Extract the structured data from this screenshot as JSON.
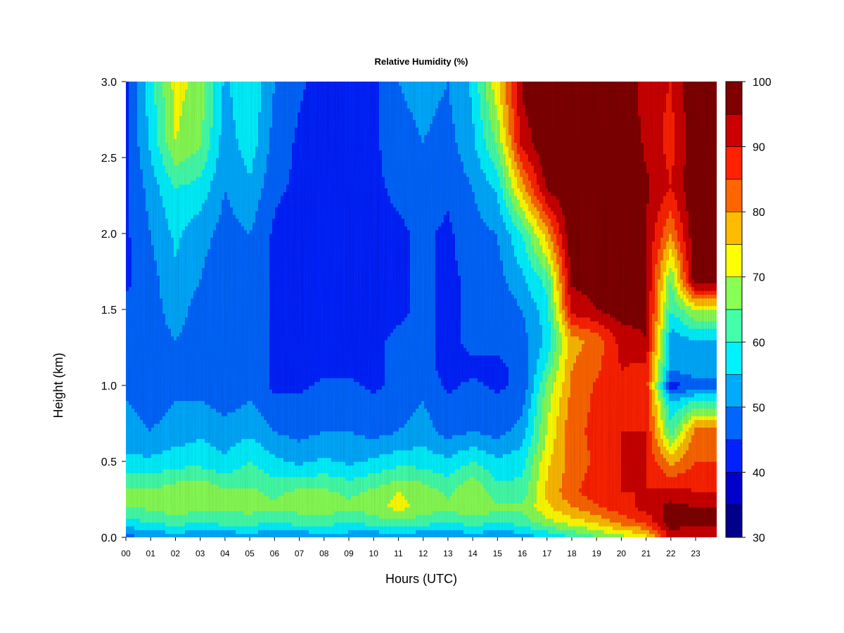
{
  "chart_data": {
    "type": "heatmap",
    "title": "Relative Humidity (%)",
    "xlabel": "Hours (UTC)",
    "ylabel": "Height (km)",
    "x_ticks": [
      "00",
      "01",
      "02",
      "03",
      "04",
      "05",
      "06",
      "07",
      "08",
      "09",
      "10",
      "11",
      "12",
      "13",
      "14",
      "15",
      "16",
      "17",
      "18",
      "19",
      "20",
      "21",
      "22",
      "23"
    ],
    "y_ticks": [
      "0.0",
      "0.5",
      "1.0",
      "1.5",
      "2.0",
      "2.5",
      "3.0"
    ],
    "xlim": [
      0,
      23.85
    ],
    "ylim": [
      0,
      3.0
    ],
    "colorbar": {
      "levels": [
        30,
        35,
        40,
        45,
        50,
        55,
        60,
        65,
        70,
        75,
        80,
        85,
        90,
        95,
        100
      ],
      "tick_labels": [
        "30",
        "40",
        "50",
        "60",
        "70",
        "80",
        "90",
        "100"
      ],
      "colors": [
        "#00008B",
        "#0000CD",
        "#0022FF",
        "#0066FF",
        "#00AAFF",
        "#00F2FF",
        "#44FFAA",
        "#88FF55",
        "#FFFF00",
        "#FFBB00",
        "#FF6600",
        "#FF2200",
        "#CC0000",
        "#800000"
      ]
    },
    "heights_km": [
      0.0,
      0.1,
      0.2,
      0.3,
      0.5,
      0.7,
      0.9,
      1.0,
      1.1,
      1.3,
      1.5,
      1.7,
      2.0,
      2.3,
      2.6,
      3.0
    ],
    "hours": [
      0,
      1,
      2,
      3,
      4,
      5,
      6,
      7,
      8,
      9,
      10,
      11,
      12,
      13,
      14,
      15,
      16,
      17,
      18,
      19,
      20,
      21,
      22,
      23
    ],
    "rh_grid_by_height": [
      [
        48,
        50,
        52,
        50,
        50,
        52,
        50,
        50,
        52,
        52,
        50,
        52,
        50,
        50,
        52,
        50,
        52,
        55,
        60,
        64,
        68,
        72,
        92,
        90
      ],
      [
        58,
        60,
        62,
        60,
        62,
        62,
        60,
        62,
        62,
        60,
        62,
        64,
        62,
        60,
        62,
        60,
        62,
        68,
        72,
        76,
        82,
        86,
        98,
        96
      ],
      [
        65,
        66,
        68,
        67,
        66,
        67,
        66,
        67,
        68,
        66,
        68,
        72,
        68,
        66,
        70,
        66,
        66,
        74,
        80,
        84,
        88,
        92,
        97,
        95
      ],
      [
        66,
        66,
        68,
        70,
        66,
        66,
        64,
        66,
        66,
        64,
        66,
        70,
        68,
        64,
        70,
        62,
        62,
        76,
        84,
        88,
        90,
        90,
        92,
        90
      ],
      [
        56,
        56,
        58,
        58,
        56,
        60,
        56,
        54,
        56,
        54,
        56,
        58,
        58,
        56,
        60,
        56,
        58,
        74,
        82,
        86,
        90,
        90,
        78,
        85
      ],
      [
        52,
        50,
        52,
        54,
        52,
        54,
        50,
        48,
        50,
        50,
        48,
        50,
        52,
        48,
        50,
        48,
        52,
        70,
        84,
        86,
        90,
        90,
        62,
        82
      ],
      [
        50,
        48,
        50,
        50,
        48,
        50,
        46,
        46,
        48,
        48,
        46,
        48,
        50,
        46,
        48,
        46,
        48,
        68,
        82,
        86,
        90,
        88,
        55,
        60
      ],
      [
        48,
        46,
        48,
        48,
        46,
        48,
        44,
        44,
        46,
        46,
        44,
        46,
        48,
        44,
        46,
        44,
        46,
        66,
        80,
        86,
        90,
        88,
        42,
        48
      ],
      [
        48,
        46,
        48,
        48,
        46,
        48,
        44,
        44,
        44,
        44,
        44,
        46,
        46,
        44,
        44,
        44,
        46,
        62,
        80,
        84,
        90,
        88,
        50,
        52
      ],
      [
        46,
        48,
        50,
        48,
        46,
        48,
        44,
        44,
        44,
        44,
        44,
        46,
        46,
        44,
        46,
        46,
        48,
        56,
        78,
        82,
        92,
        95,
        52,
        55
      ],
      [
        46,
        48,
        52,
        48,
        46,
        48,
        44,
        42,
        42,
        42,
        42,
        44,
        46,
        44,
        46,
        46,
        50,
        58,
        92,
        95,
        98,
        96,
        60,
        70
      ],
      [
        44,
        48,
        54,
        50,
        46,
        48,
        44,
        42,
        42,
        42,
        42,
        44,
        46,
        44,
        46,
        48,
        54,
        62,
        96,
        97,
        100,
        96,
        65,
        100
      ],
      [
        44,
        50,
        56,
        52,
        48,
        50,
        44,
        42,
        42,
        42,
        44,
        44,
        46,
        44,
        48,
        50,
        60,
        78,
        100,
        100,
        100,
        95,
        80,
        100
      ],
      [
        44,
        52,
        60,
        58,
        50,
        54,
        46,
        44,
        42,
        42,
        44,
        46,
        48,
        46,
        50,
        56,
        78,
        96,
        100,
        100,
        100,
        96,
        90,
        100
      ],
      [
        44,
        56,
        70,
        66,
        52,
        58,
        48,
        44,
        42,
        40,
        44,
        48,
        50,
        48,
        54,
        66,
        92,
        100,
        100,
        100,
        100,
        94,
        88,
        100
      ],
      [
        44,
        58,
        72,
        68,
        54,
        60,
        50,
        46,
        42,
        40,
        44,
        50,
        52,
        50,
        56,
        74,
        96,
        100,
        100,
        100,
        100,
        92,
        90,
        100
      ]
    ]
  }
}
